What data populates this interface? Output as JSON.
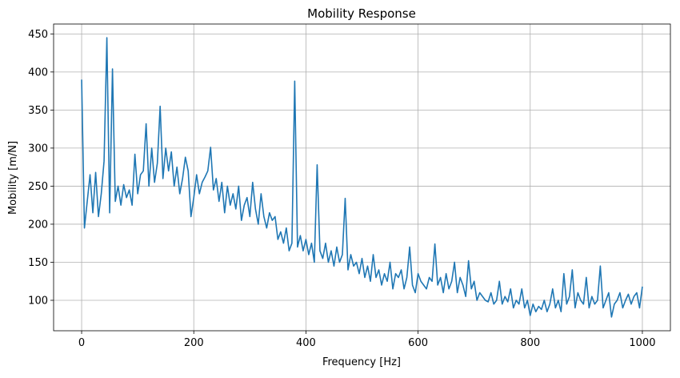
{
  "chart_data": {
    "type": "line",
    "title": "Mobility Response",
    "xlabel": "Frequency [Hz]",
    "ylabel": "Mobility [m/N]",
    "x": [
      0,
      5,
      10,
      15,
      20,
      25,
      30,
      35,
      40,
      45,
      50,
      55,
      60,
      65,
      70,
      75,
      80,
      85,
      90,
      95,
      100,
      105,
      110,
      115,
      120,
      125,
      130,
      135,
      140,
      145,
      150,
      155,
      160,
      165,
      170,
      175,
      180,
      185,
      190,
      195,
      200,
      205,
      210,
      215,
      220,
      225,
      230,
      235,
      240,
      245,
      250,
      255,
      260,
      265,
      270,
      275,
      280,
      285,
      290,
      295,
      300,
      305,
      310,
      315,
      320,
      325,
      330,
      335,
      340,
      345,
      350,
      355,
      360,
      365,
      370,
      375,
      380,
      385,
      390,
      395,
      400,
      405,
      410,
      415,
      420,
      425,
      430,
      435,
      440,
      445,
      450,
      455,
      460,
      465,
      470,
      475,
      480,
      485,
      490,
      495,
      500,
      505,
      510,
      515,
      520,
      525,
      530,
      535,
      540,
      545,
      550,
      555,
      560,
      565,
      570,
      575,
      580,
      585,
      590,
      595,
      600,
      605,
      610,
      615,
      620,
      625,
      630,
      635,
      640,
      645,
      650,
      655,
      660,
      665,
      670,
      675,
      680,
      685,
      690,
      695,
      700,
      705,
      710,
      715,
      720,
      725,
      730,
      735,
      740,
      745,
      750,
      755,
      760,
      765,
      770,
      775,
      780,
      785,
      790,
      795,
      800,
      805,
      810,
      815,
      820,
      825,
      830,
      835,
      840,
      845,
      850,
      855,
      860,
      865,
      870,
      875,
      880,
      885,
      890,
      895,
      900,
      905,
      910,
      915,
      920,
      925,
      930,
      935,
      940,
      945,
      950,
      955,
      960,
      965,
      970,
      975,
      980,
      985,
      990,
      995,
      1000
    ],
    "series": [
      {
        "name": "Mobility",
        "color": "#1f77b4",
        "values": [
          390,
          195,
          230,
          265,
          215,
          268,
          210,
          240,
          283,
          445,
          215,
          404,
          230,
          250,
          225,
          252,
          235,
          245,
          225,
          292,
          240,
          265,
          270,
          332,
          250,
          300,
          255,
          280,
          355,
          260,
          300,
          270,
          295,
          250,
          275,
          240,
          260,
          288,
          270,
          210,
          235,
          265,
          240,
          255,
          262,
          270,
          301,
          245,
          260,
          230,
          255,
          215,
          250,
          225,
          240,
          220,
          250,
          205,
          225,
          235,
          210,
          255,
          220,
          200,
          240,
          210,
          195,
          215,
          205,
          210,
          180,
          190,
          175,
          195,
          165,
          175,
          388,
          170,
          185,
          165,
          180,
          160,
          175,
          150,
          278,
          165,
          155,
          175,
          150,
          165,
          145,
          170,
          150,
          160,
          234,
          140,
          160,
          145,
          150,
          135,
          155,
          130,
          145,
          125,
          160,
          130,
          140,
          120,
          135,
          125,
          150,
          115,
          135,
          130,
          140,
          115,
          130,
          170,
          120,
          110,
          135,
          125,
          120,
          115,
          130,
          125,
          174,
          120,
          130,
          110,
          135,
          115,
          125,
          150,
          110,
          130,
          120,
          105,
          152,
          115,
          125,
          100,
          110,
          105,
          100,
          98,
          110,
          95,
          100,
          125,
          95,
          105,
          98,
          115,
          90,
          100,
          95,
          115,
          90,
          100,
          80,
          95,
          85,
          92,
          88,
          100,
          85,
          95,
          115,
          90,
          100,
          85,
          135,
          95,
          105,
          140,
          90,
          110,
          100,
          95,
          130,
          90,
          105,
          95,
          100,
          145,
          90,
          100,
          110,
          78,
          95,
          100,
          110,
          90,
          100,
          108,
          95,
          105,
          110,
          90,
          118
        ]
      }
    ],
    "xlim": [
      -50,
      1050
    ],
    "ylim": [
      60,
      463
    ],
    "xticks": [
      0,
      200,
      400,
      600,
      800,
      1000
    ],
    "yticks": [
      100,
      150,
      200,
      250,
      300,
      350,
      400,
      450
    ],
    "grid": true
  }
}
